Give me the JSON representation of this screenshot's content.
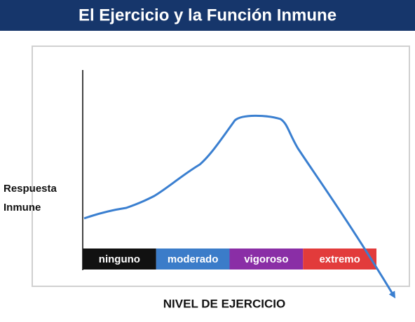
{
  "header": {
    "title": "El Ejercicio y la Función Inmune"
  },
  "y_label": [
    "Respuesta",
    "Inmune"
  ],
  "x_label": "NIVEL DE EJERCICIO",
  "bands": [
    {
      "label": "ninguno",
      "color": "#111111"
    },
    {
      "label": "moderado",
      "color": "#3b7cc9"
    },
    {
      "label": "vigoroso",
      "color": "#8a2ea6"
    },
    {
      "label": "extremo",
      "color": "#e23b3b"
    }
  ]
}
